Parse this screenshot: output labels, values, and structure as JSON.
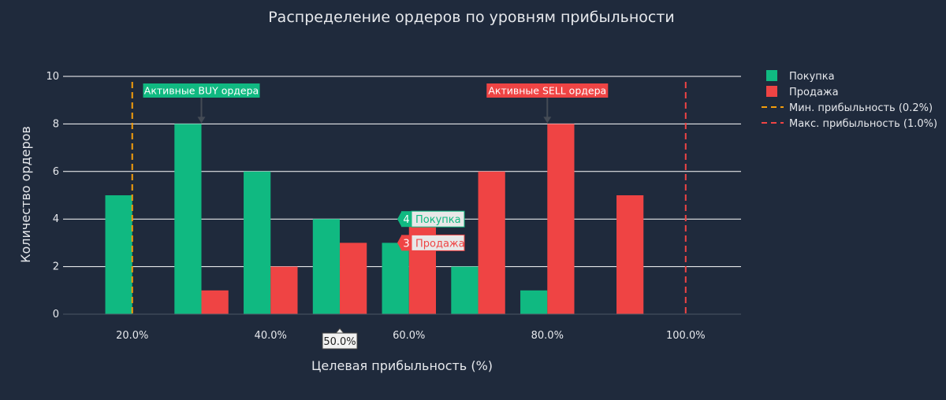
{
  "chart_data": {
    "type": "bar",
    "title": "Распределение ордеров по уровням прибыльности",
    "xlabel": "Целевая прибыльность (%)",
    "ylabel": "Количество ордеров",
    "x_ticks": [
      "20.0%",
      "40.0%",
      "60.0%",
      "80.0%",
      "100.0%"
    ],
    "x_tick_values": [
      20,
      40,
      60,
      80,
      100
    ],
    "xlim": [
      10,
      108
    ],
    "ylim": [
      0,
      10
    ],
    "y_ticks": [
      0,
      2,
      4,
      6,
      8,
      10
    ],
    "grid": true,
    "legend_position": "right",
    "x": [
      20,
      30,
      40,
      50,
      60,
      70,
      80,
      90
    ],
    "series": [
      {
        "name": "Покупка",
        "color": "#10b981",
        "values": [
          5,
          8,
          6,
          4,
          3,
          2,
          1,
          0
        ]
      },
      {
        "name": "Продажа",
        "color": "#ef4444",
        "values": [
          0,
          1,
          2,
          3,
          4,
          6,
          8,
          5
        ]
      }
    ],
    "reference_lines": [
      {
        "name": "Мин. прибыльность (0.2%)",
        "x": 20,
        "color": "#f59e0b"
      },
      {
        "name": "Макс. прибыльность (1.0%)",
        "x": 100,
        "color": "#ef4444"
      }
    ],
    "annotations": [
      {
        "text": "Активные BUY ордера",
        "x": 30,
        "y": 8,
        "color": "#10b981"
      },
      {
        "text": "Активные SELL ордера",
        "x": 80,
        "y": 8,
        "color": "#ef4444"
      }
    ],
    "hover": {
      "x_label": "50.0%",
      "items": [
        {
          "value": "4",
          "name": "Покупка",
          "color": "#10b981"
        },
        {
          "value": "3",
          "name": "Продажа",
          "color": "#ef4444"
        }
      ]
    }
  }
}
